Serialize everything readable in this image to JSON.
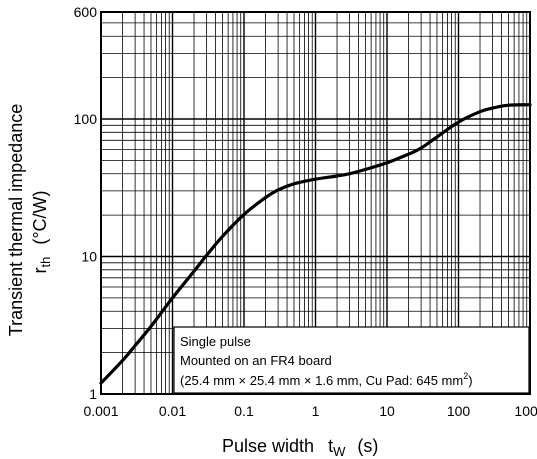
{
  "chart_data": {
    "type": "line",
    "title": "",
    "xlabel": {
      "text": "Pulse width",
      "symbol": "t",
      "sub": "W",
      "unit": "(s)"
    },
    "ylabel": {
      "text": "Transient thermal impedance",
      "symbol": "r",
      "sub": "th",
      "unit": "(°C/W)"
    },
    "xscale": "log",
    "yscale": "log",
    "xlim": [
      0.001,
      1000
    ],
    "ylim": [
      1,
      600
    ],
    "grid": true,
    "x_ticks": [
      "0.001",
      "0.01",
      "0.1",
      "1",
      "10",
      "100",
      "1000"
    ],
    "y_ticks": [
      "1",
      "10",
      "100",
      "600"
    ],
    "series": [
      {
        "x": [
          0.001,
          0.002,
          0.003,
          0.005,
          0.01,
          0.02,
          0.03,
          0.05,
          0.1,
          0.2,
          0.3,
          0.5,
          1,
          2,
          3,
          5,
          10,
          20,
          30,
          50,
          100,
          200,
          300,
          500,
          1000
        ],
        "y": [
          1.2,
          1.75,
          2.25,
          3.1,
          5.0,
          7.8,
          10.2,
          14.0,
          20.2,
          26.8,
          30.5,
          33.8,
          36.5,
          38.5,
          40.0,
          43.0,
          48.0,
          55.5,
          61.5,
          74.0,
          95.0,
          113.0,
          120.0,
          126.0,
          127.0
        ]
      }
    ],
    "annotation": {
      "line1": "Single pulse",
      "line2": "Mounted on an FR4 board",
      "line3": "(25.4 mm × 25.4 mm × 1.6 mm, Cu Pad: 645 mm",
      "line3_sup": "2",
      "line3_end": ")"
    }
  }
}
